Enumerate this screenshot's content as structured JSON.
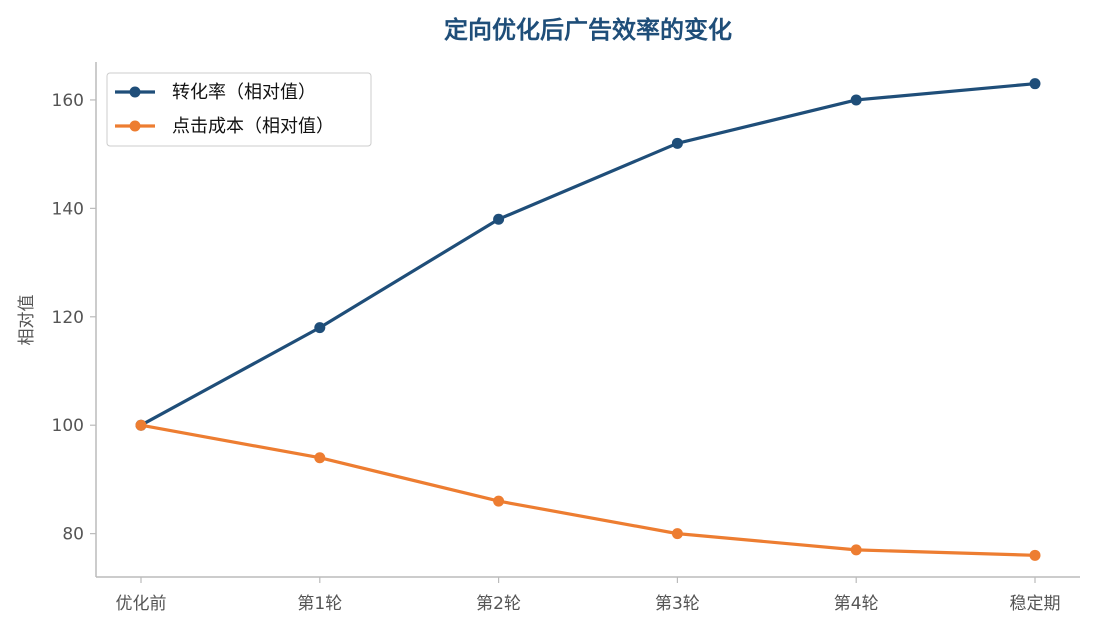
{
  "chart_data": {
    "type": "line",
    "title": "定向优化后广告效率的变化",
    "xlabel": "",
    "ylabel": "相对值",
    "categories": [
      "优化前",
      "第1轮",
      "第2轮",
      "第3轮",
      "第4轮",
      "稳定期"
    ],
    "yticks": [
      80,
      100,
      120,
      140,
      160
    ],
    "ylim": [
      72,
      167
    ],
    "grid": false,
    "legend_position": "top-left",
    "series": [
      {
        "name": "转化率（相对值）",
        "color": "#1f4e79",
        "values": [
          100,
          118,
          138,
          152,
          160,
          163
        ]
      },
      {
        "name": "点击成本（相对值）",
        "color": "#ed7d31",
        "values": [
          100,
          94,
          86,
          80,
          77,
          76
        ]
      }
    ]
  },
  "colors": {
    "title": "#1f4e79",
    "axis": "#bbbbbb",
    "tick_text": "#555555"
  }
}
